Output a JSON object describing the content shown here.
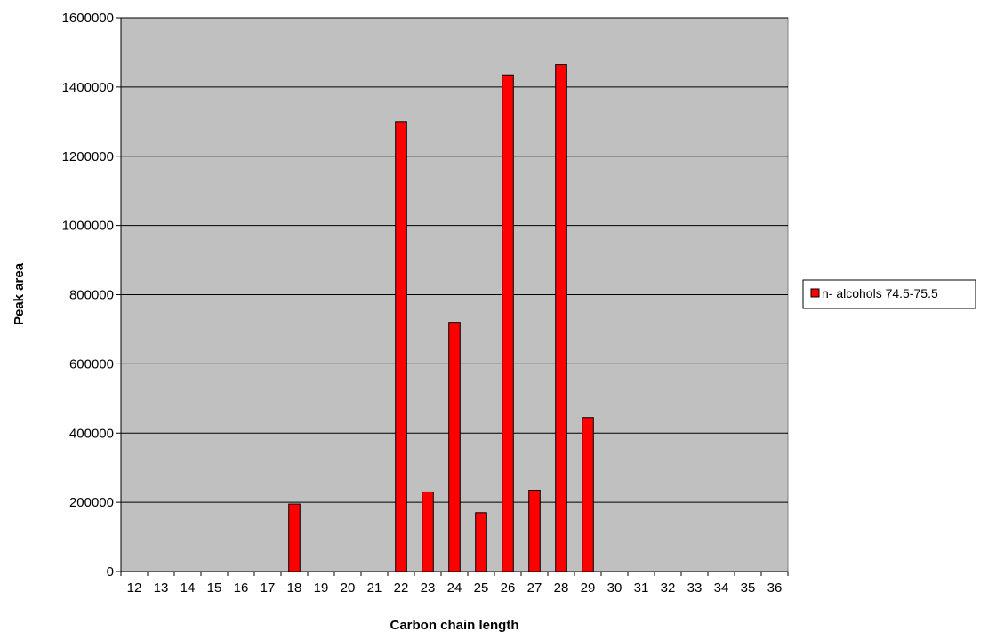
{
  "chart_data": {
    "type": "bar",
    "title": "",
    "xlabel": "Carbon chain length",
    "ylabel": "Peak area",
    "categories": [
      "12",
      "13",
      "14",
      "15",
      "16",
      "17",
      "18",
      "19",
      "20",
      "21",
      "22",
      "23",
      "24",
      "25",
      "26",
      "27",
      "28",
      "29",
      "30",
      "31",
      "32",
      "33",
      "34",
      "35",
      "36"
    ],
    "series": [
      {
        "name": "n- alcohols 74.5-75.5",
        "color": "#ff0000",
        "values": [
          0,
          0,
          0,
          0,
          0,
          0,
          195000,
          0,
          0,
          0,
          1300000,
          230000,
          720000,
          170000,
          1435000,
          235000,
          1465000,
          445000,
          0,
          0,
          0,
          0,
          0,
          0,
          0
        ]
      }
    ],
    "ylim": [
      0,
      1600000
    ],
    "yticks": [
      0,
      200000,
      400000,
      600000,
      800000,
      1000000,
      1200000,
      1400000,
      1600000
    ],
    "ytick_labels": [
      "0",
      "200000",
      "400000",
      "600000",
      "800000",
      "1000000",
      "1200000",
      "1400000",
      "1600000"
    ],
    "grid": true,
    "plot_background": "#c0c0c0",
    "legend_position": "right"
  }
}
